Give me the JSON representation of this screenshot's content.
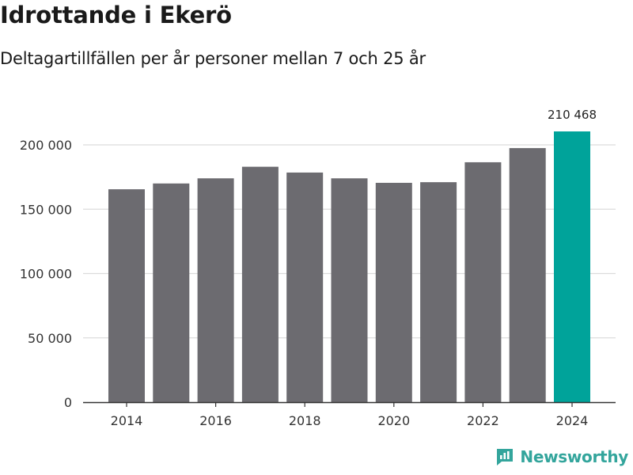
{
  "header": {
    "title": "Idrottande i Ekerö",
    "subtitle": "Deltagartillfällen per år personer mellan 7 och 25 år"
  },
  "chart_data": {
    "type": "bar",
    "title": "Idrottande i Ekerö",
    "subtitle": "Deltagartillfällen per år personer mellan 7 och 25 år",
    "xlabel": "",
    "ylabel": "",
    "categories": [
      "2014",
      "2015",
      "2016",
      "2017",
      "2018",
      "2019",
      "2020",
      "2021",
      "2022",
      "2023",
      "2024"
    ],
    "values": [
      165500,
      170000,
      174000,
      183000,
      178500,
      174000,
      170500,
      171000,
      186500,
      197500,
      210468
    ],
    "x_tick_labels": [
      "2014",
      "2016",
      "2018",
      "2020",
      "2022",
      "2024"
    ],
    "y_ticks": [
      0,
      50000,
      100000,
      150000,
      200000
    ],
    "y_tick_labels": [
      "0",
      "50 000",
      "100 000",
      "150 000",
      "200 000"
    ],
    "ylim": [
      0,
      210468
    ],
    "grid": true,
    "highlight_index": 10,
    "highlight_label": "210 468",
    "bar_color": "#6c6b70",
    "highlight_color": "#00a39a",
    "grid_color": "#dcdcdc"
  },
  "brand": {
    "name": "Newsworthy",
    "icon": "newsworthy-logo-icon",
    "color": "#33a59c"
  }
}
